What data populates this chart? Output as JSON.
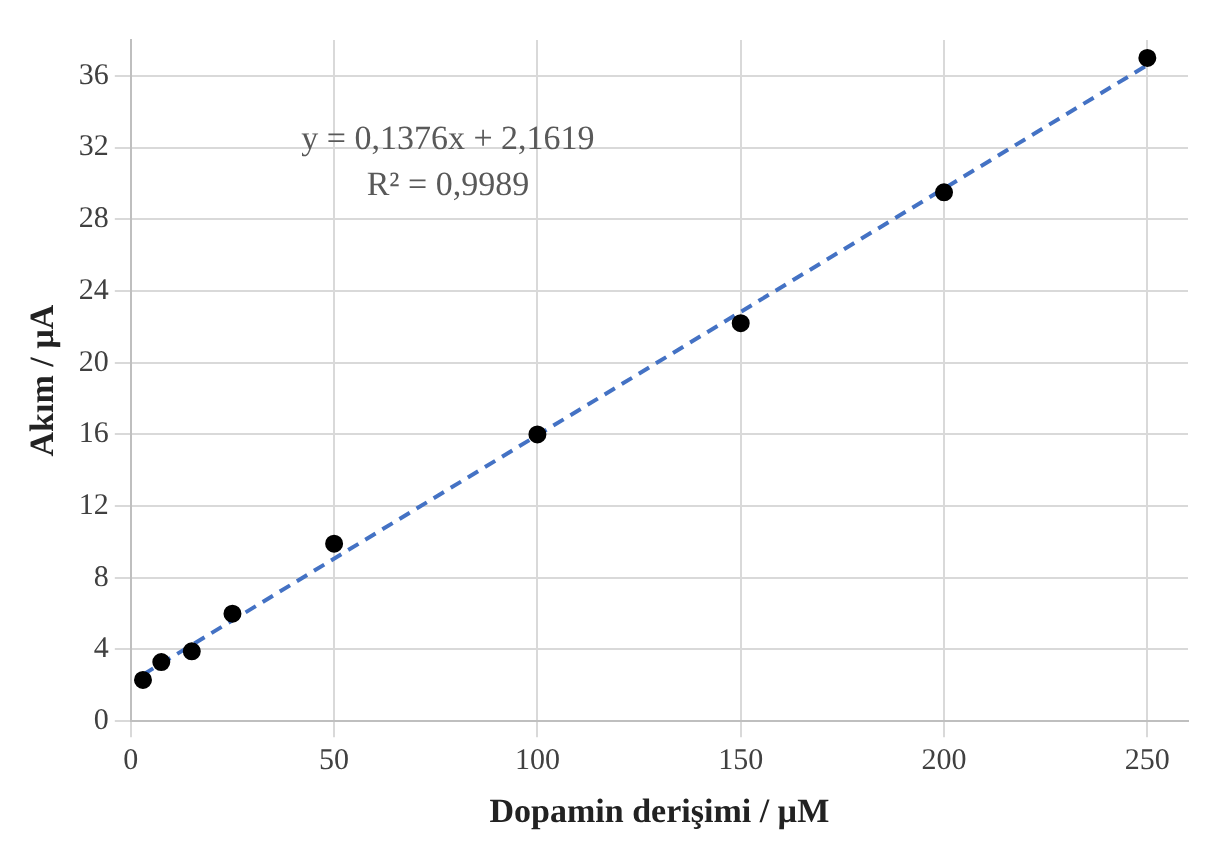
{
  "chart_data": {
    "type": "scatter",
    "xlabel": "Dopamin derişimi / µM",
    "ylabel": "Akım / µA",
    "x": [
      3,
      7.5,
      15,
      25,
      50,
      100,
      150,
      200,
      250
    ],
    "series": [
      {
        "color": "#000000",
        "values": [
          2.3,
          3.3,
          3.9,
          6.0,
          9.9,
          16.0,
          22.2,
          29.5,
          37.0
        ],
        "marker": "circle"
      },
      {
        "type": "line",
        "color": "#4472c4",
        "x": [
          3,
          250
        ],
        "values": [
          2.6,
          36.6
        ],
        "line_style": "dashed",
        "marker": "none"
      }
    ],
    "xlim": [
      0,
      260
    ],
    "xticks": [
      0,
      50,
      100,
      150,
      200,
      250
    ],
    "ylim": [
      0,
      38
    ],
    "yticks": [
      0,
      4,
      8,
      12,
      16,
      20,
      24,
      28,
      32,
      36
    ],
    "grid": true,
    "legend": false,
    "annotations": [
      "y = 0,1376x + 2,1619",
      "R² = 0,9989"
    ]
  }
}
